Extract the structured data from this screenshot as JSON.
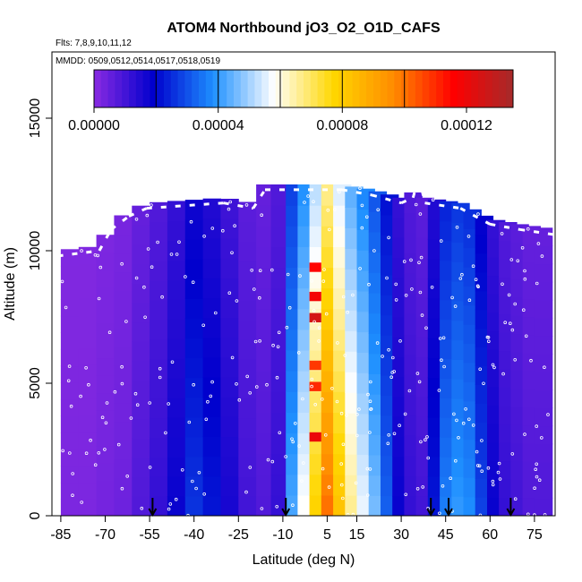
{
  "chart_data": {
    "type": "heatmap",
    "title": "ATOM4 Northbound jO3_O2_O1D_CAFS",
    "flights_label": "Flts: 7,8,9,10,11,12",
    "dates_label": "MMDD: 0509,0512,0514,0517,0518,0519",
    "xlabel": "Latitude (deg N)",
    "ylabel": "Altitude (m)",
    "xlim": [
      -88,
      82
    ],
    "ylim": [
      0,
      17500
    ],
    "x_ticks": [
      -85,
      -70,
      -55,
      -40,
      -25,
      -10,
      5,
      15,
      30,
      45,
      60,
      75
    ],
    "x_tick_labels": [
      "-85",
      "-70",
      "-55",
      "-40",
      "-25",
      "-10",
      "5",
      "15",
      "30",
      "45",
      "60",
      "75"
    ],
    "y_ticks": [
      0,
      5000,
      10000,
      15000
    ],
    "y_tick_labels": [
      "0",
      "5000",
      "10000",
      "15000"
    ],
    "colorbar": {
      "min": 0,
      "max": 0.000135,
      "ticks": [
        0,
        4e-05,
        8e-05,
        0.00012
      ],
      "tick_labels": [
        "0.00000",
        "0.00004",
        "0.00008",
        "0.00012"
      ],
      "colors": [
        "#8A2BE2",
        "#0000CD",
        "#1E90FF",
        "#FFFFFF",
        "#FFD700",
        "#FF8C00",
        "#FF0000",
        "#A52A2A"
      ]
    },
    "profile_latitudes": [
      -54,
      -9,
      40,
      46,
      67
    ],
    "ceiling_profile": [
      {
        "lat": -86,
        "alt": 10000
      },
      {
        "lat": -72,
        "alt": 10200
      },
      {
        "lat": -68,
        "alt": 11000
      },
      {
        "lat": -62,
        "alt": 11500
      },
      {
        "lat": -56,
        "alt": 11800
      },
      {
        "lat": -30,
        "alt": 12000
      },
      {
        "lat": -20,
        "alt": 11800
      },
      {
        "lat": -16,
        "alt": 12500
      },
      {
        "lat": 10,
        "alt": 12500
      },
      {
        "lat": 20,
        "alt": 12300
      },
      {
        "lat": 30,
        "alt": 12000
      },
      {
        "lat": 34,
        "alt": 12200
      },
      {
        "lat": 36,
        "alt": 13000
      },
      {
        "lat": 38,
        "alt": 12000
      },
      {
        "lat": 50,
        "alt": 11800
      },
      {
        "lat": 60,
        "alt": 11200
      },
      {
        "lat": 70,
        "alt": 11000
      },
      {
        "lat": 82,
        "alt": 10800
      }
    ],
    "columns": [
      {
        "lat": -82,
        "value": 2e-06
      },
      {
        "lat": -76,
        "value": 2e-06
      },
      {
        "lat": -70,
        "value": 3e-06
      },
      {
        "lat": -64,
        "value": 4e-06
      },
      {
        "lat": -58,
        "value": 8e-06
      },
      {
        "lat": -52,
        "value": 1.2e-05
      },
      {
        "lat": -46,
        "value": 1.8e-05
      },
      {
        "lat": -40,
        "value": 2.6e-05
      },
      {
        "lat": -34,
        "value": 2.2e-05
      },
      {
        "lat": -28,
        "value": 1.6e-05
      },
      {
        "lat": -22,
        "value": 1e-05
      },
      {
        "lat": -16,
        "value": 8e-06
      },
      {
        "lat": -11,
        "value": 1.2e-05
      },
      {
        "lat": -6,
        "value": 4.2e-05
      },
      {
        "lat": -2,
        "value": 5.8e-05
      },
      {
        "lat": 2,
        "value": 7.8e-05
      },
      {
        "lat": 6,
        "value": 0.0001
      },
      {
        "lat": 10,
        "value": 8.2e-05
      },
      {
        "lat": 14,
        "value": 6.6e-05
      },
      {
        "lat": 18,
        "value": 5.6e-05
      },
      {
        "lat": 22,
        "value": 4.6e-05
      },
      {
        "lat": 26,
        "value": 3.2e-05
      },
      {
        "lat": 30,
        "value": 1.8e-05
      },
      {
        "lat": 34,
        "value": 1.2e-05
      },
      {
        "lat": 38,
        "value": 1e-05
      },
      {
        "lat": 42,
        "value": 2.2e-05
      },
      {
        "lat": 46,
        "value": 3.6e-05
      },
      {
        "lat": 50,
        "value": 4e-05
      },
      {
        "lat": 54,
        "value": 3.8e-05
      },
      {
        "lat": 58,
        "value": 2.8e-05
      },
      {
        "lat": 62,
        "value": 1.8e-05
      },
      {
        "lat": 66,
        "value": 1.2e-05
      },
      {
        "lat": 70,
        "value": 1e-05
      },
      {
        "lat": 74,
        "value": 8e-06
      },
      {
        "lat": 78,
        "value": 8e-06
      }
    ],
    "hotspots": [
      {
        "lat": 1,
        "alt": 2800,
        "value": 0.00012
      },
      {
        "lat": 1,
        "alt": 4700,
        "value": 0.00011
      },
      {
        "lat": 1,
        "alt": 5500,
        "value": 0.000108
      },
      {
        "lat": 1,
        "alt": 7300,
        "value": 0.000125
      },
      {
        "lat": 1,
        "alt": 8100,
        "value": 0.000118
      },
      {
        "lat": 1,
        "alt": 9200,
        "value": 0.000115
      }
    ]
  }
}
